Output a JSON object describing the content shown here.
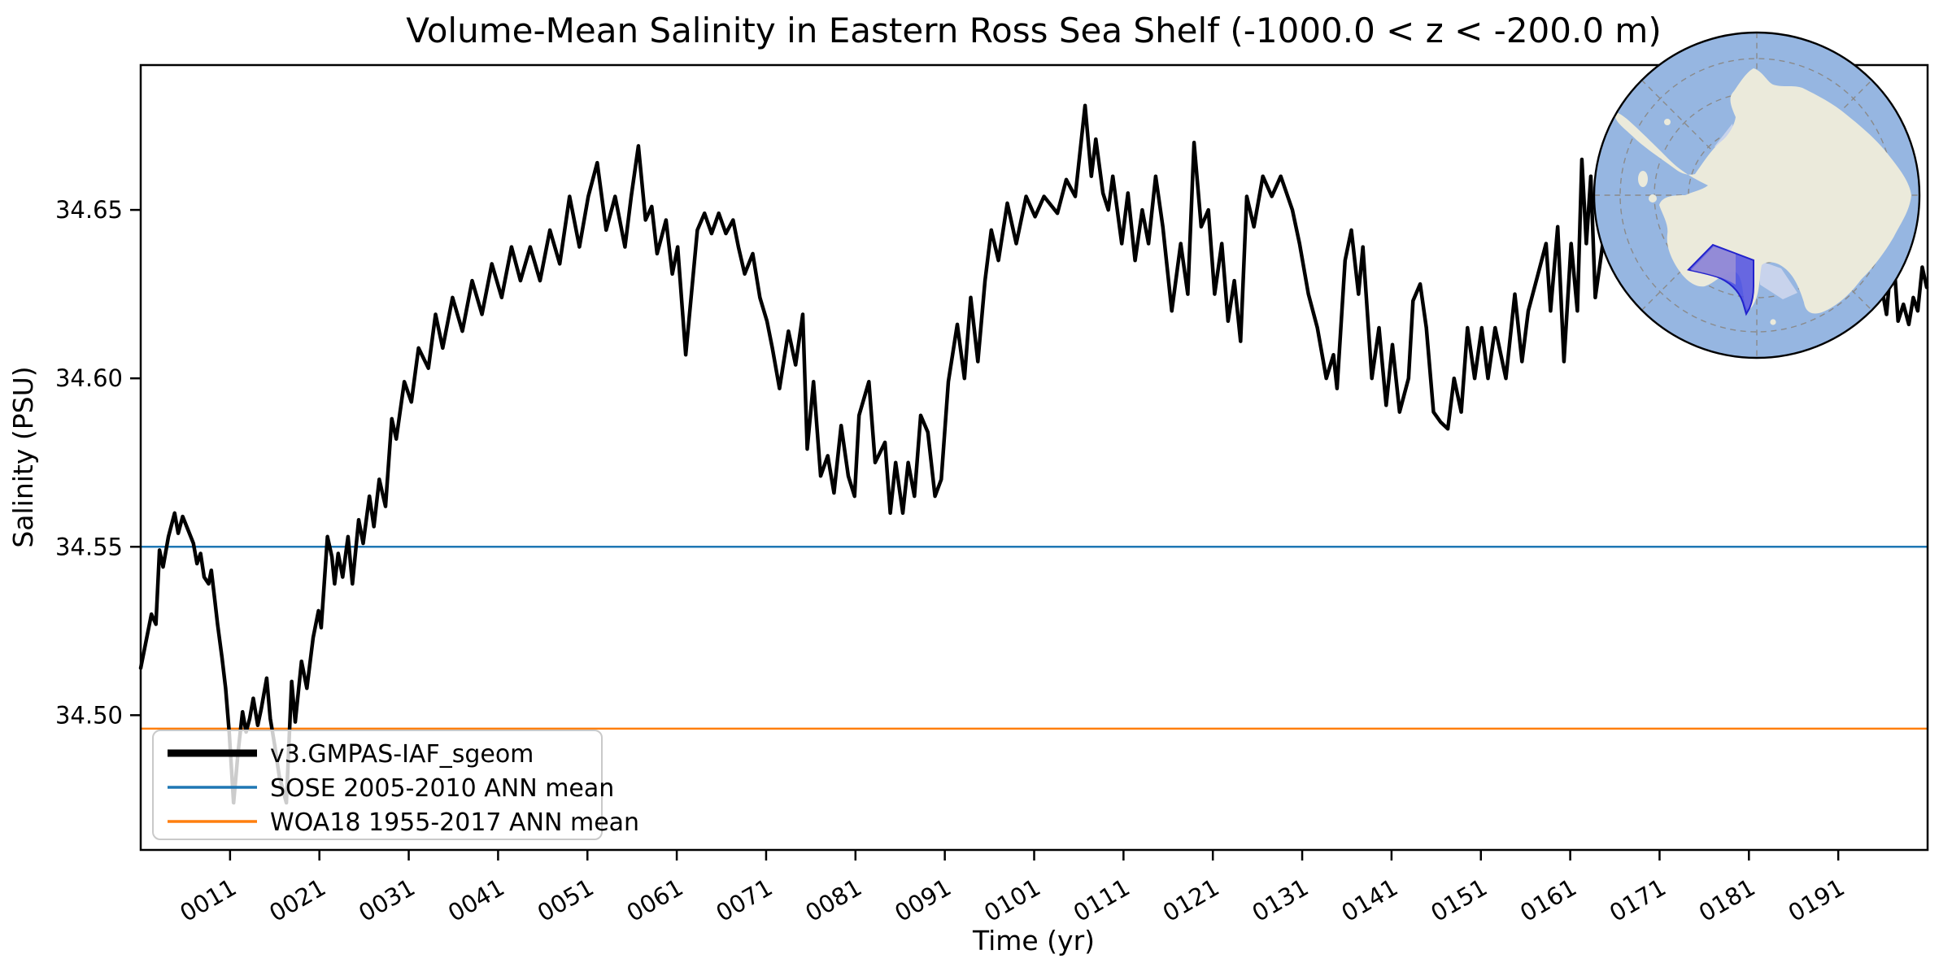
{
  "figure": {
    "title": "Volume-Mean Salinity in Eastern Ross Sea Shelf (-1000.0 < z < -200.0 m)",
    "xlabel": "Time (yr)",
    "ylabel": "Salinity (PSU)"
  },
  "legend": {
    "entries": [
      {
        "label": "v3.GMPAS-IAF_sgeom",
        "color": "#000000"
      },
      {
        "label": "SOSE 2005-2010 ANN mean",
        "color": "#1f77b4"
      },
      {
        "label": "WOA18 1955-2017 ANN mean",
        "color": "#ff7f0e"
      }
    ]
  },
  "inset_map": {
    "description": "south-polar-stereographic-map",
    "colors": {
      "ocean": "#96b6e1",
      "land": "#ebeadb",
      "ice_shelf": "#c8d3ec",
      "region_fill": "#4646e2",
      "region_fill_light": "#988fd6",
      "region_edge": "#2222cc",
      "graticule": "#8a8a8a",
      "border": "#000000"
    }
  },
  "chart_data": {
    "type": "line",
    "title": "Volume-Mean Salinity in Eastern Ross Sea Shelf (-1000.0 < z < -200.0 m)",
    "xlabel": "Time (yr)",
    "ylabel": "Salinity (PSU)",
    "xlim": [
      1,
      201
    ],
    "ylim": [
      34.46,
      34.693
    ],
    "grid": false,
    "legend_position": "lower left",
    "x_ticks": [
      {
        "v": 11,
        "label": "0011"
      },
      {
        "v": 21,
        "label": "0021"
      },
      {
        "v": 31,
        "label": "0031"
      },
      {
        "v": 41,
        "label": "0041"
      },
      {
        "v": 51,
        "label": "0051"
      },
      {
        "v": 61,
        "label": "0061"
      },
      {
        "v": 71,
        "label": "0071"
      },
      {
        "v": 81,
        "label": "0081"
      },
      {
        "v": 91,
        "label": "0091"
      },
      {
        "v": 101,
        "label": "0101"
      },
      {
        "v": 111,
        "label": "0111"
      },
      {
        "v": 121,
        "label": "0121"
      },
      {
        "v": 131,
        "label": "0131"
      },
      {
        "v": 141,
        "label": "0141"
      },
      {
        "v": 151,
        "label": "0151"
      },
      {
        "v": 161,
        "label": "0161"
      },
      {
        "v": 171,
        "label": "0171"
      },
      {
        "v": 181,
        "label": "0181"
      },
      {
        "v": 191,
        "label": "0191"
      }
    ],
    "y_ticks": [
      {
        "v": 34.65,
        "label": "34.65"
      },
      {
        "v": 34.6,
        "label": "34.60"
      },
      {
        "v": 34.55,
        "label": "34.55"
      },
      {
        "v": 34.5,
        "label": "34.50"
      }
    ],
    "reference_lines": [
      {
        "name": "SOSE 2005-2010 ANN mean",
        "value": 34.55,
        "color": "#1f77b4"
      },
      {
        "name": "WOA18 1955-2017 ANN mean",
        "value": 34.496,
        "color": "#ff7f0e"
      }
    ],
    "series": [
      {
        "name": "v3.GMPAS-IAF_sgeom",
        "color": "#000000",
        "linewidth": 4.5,
        "points": [
          [
            1,
            34.514
          ],
          [
            1.6,
            34.522
          ],
          [
            2.2,
            34.53
          ],
          [
            2.7,
            34.527
          ],
          [
            3.1,
            34.549
          ],
          [
            3.5,
            34.544
          ],
          [
            4.1,
            34.553
          ],
          [
            4.8,
            34.56
          ],
          [
            5.2,
            34.554
          ],
          [
            5.7,
            34.559
          ],
          [
            6.3,
            34.555
          ],
          [
            6.9,
            34.551
          ],
          [
            7.3,
            34.545
          ],
          [
            7.7,
            34.548
          ],
          [
            8.1,
            34.541
          ],
          [
            8.6,
            34.539
          ],
          [
            8.9,
            34.543
          ],
          [
            9.3,
            34.534
          ],
          [
            9.6,
            34.527
          ],
          [
            10.1,
            34.517
          ],
          [
            10.5,
            34.508
          ],
          [
            10.9,
            34.495
          ],
          [
            11.4,
            34.474
          ],
          [
            11.9,
            34.489
          ],
          [
            12.4,
            34.501
          ],
          [
            12.8,
            34.495
          ],
          [
            13.2,
            34.499
          ],
          [
            13.6,
            34.505
          ],
          [
            14.1,
            34.497
          ],
          [
            14.5,
            34.502
          ],
          [
            15.1,
            34.511
          ],
          [
            15.5,
            34.499
          ],
          [
            16,
            34.491
          ],
          [
            16.5,
            34.482
          ],
          [
            17.3,
            34.474
          ],
          [
            17.9,
            34.51
          ],
          [
            18.3,
            34.498
          ],
          [
            19,
            34.516
          ],
          [
            19.6,
            34.508
          ],
          [
            20.3,
            34.523
          ],
          [
            20.9,
            34.531
          ],
          [
            21.2,
            34.526
          ],
          [
            21.9,
            34.553
          ],
          [
            22.4,
            34.547
          ],
          [
            22.7,
            34.539
          ],
          [
            23.1,
            34.548
          ],
          [
            23.6,
            34.541
          ],
          [
            24.2,
            34.553
          ],
          [
            24.7,
            34.539
          ],
          [
            25.4,
            34.558
          ],
          [
            25.9,
            34.551
          ],
          [
            26.6,
            34.565
          ],
          [
            27.1,
            34.556
          ],
          [
            27.7,
            34.57
          ],
          [
            28.4,
            34.562
          ],
          [
            29.1,
            34.588
          ],
          [
            29.6,
            34.582
          ],
          [
            30.5,
            34.599
          ],
          [
            31.3,
            34.593
          ],
          [
            32.1,
            34.609
          ],
          [
            33.2,
            34.603
          ],
          [
            34,
            34.619
          ],
          [
            34.8,
            34.609
          ],
          [
            35.9,
            34.624
          ],
          [
            37,
            34.614
          ],
          [
            38.1,
            34.629
          ],
          [
            39.2,
            34.619
          ],
          [
            40.3,
            34.634
          ],
          [
            41.4,
            34.624
          ],
          [
            42.5,
            34.639
          ],
          [
            43.5,
            34.629
          ],
          [
            44.6,
            34.639
          ],
          [
            45.7,
            34.629
          ],
          [
            46.8,
            34.644
          ],
          [
            47.9,
            34.634
          ],
          [
            49,
            34.654
          ],
          [
            50.1,
            34.639
          ],
          [
            51.1,
            34.654
          ],
          [
            52.1,
            34.664
          ],
          [
            53.1,
            34.644
          ],
          [
            54.1,
            34.654
          ],
          [
            55.2,
            34.639
          ],
          [
            55.9,
            34.654
          ],
          [
            56.7,
            34.669
          ],
          [
            57.5,
            34.647
          ],
          [
            58.2,
            34.651
          ],
          [
            58.8,
            34.637
          ],
          [
            59.8,
            34.647
          ],
          [
            60.5,
            34.631
          ],
          [
            61.1,
            34.639
          ],
          [
            62,
            34.607
          ],
          [
            62.6,
            34.624
          ],
          [
            63.3,
            34.644
          ],
          [
            64.1,
            34.649
          ],
          [
            64.9,
            34.643
          ],
          [
            65.7,
            34.649
          ],
          [
            66.5,
            34.643
          ],
          [
            67.3,
            34.647
          ],
          [
            67.9,
            34.639
          ],
          [
            68.6,
            34.631
          ],
          [
            69.5,
            34.637
          ],
          [
            70.3,
            34.624
          ],
          [
            71.1,
            34.617
          ],
          [
            71.7,
            34.609
          ],
          [
            72.5,
            34.597
          ],
          [
            73.5,
            34.614
          ],
          [
            74.3,
            34.604
          ],
          [
            75.1,
            34.619
          ],
          [
            75.6,
            34.579
          ],
          [
            76.3,
            34.599
          ],
          [
            77.1,
            34.571
          ],
          [
            77.9,
            34.577
          ],
          [
            78.6,
            34.566
          ],
          [
            79.4,
            34.586
          ],
          [
            80.2,
            34.571
          ],
          [
            80.9,
            34.565
          ],
          [
            81.4,
            34.589
          ],
          [
            82.5,
            34.599
          ],
          [
            83.2,
            34.575
          ],
          [
            84.3,
            34.581
          ],
          [
            84.9,
            34.56
          ],
          [
            85.5,
            34.575
          ],
          [
            86.3,
            34.56
          ],
          [
            86.9,
            34.575
          ],
          [
            87.6,
            34.565
          ],
          [
            88.3,
            34.589
          ],
          [
            89.1,
            34.584
          ],
          [
            89.9,
            34.565
          ],
          [
            90.6,
            34.57
          ],
          [
            91.4,
            34.599
          ],
          [
            92.4,
            34.616
          ],
          [
            93.2,
            34.6
          ],
          [
            93.9,
            34.624
          ],
          [
            94.7,
            34.605
          ],
          [
            95.5,
            34.629
          ],
          [
            96.2,
            34.644
          ],
          [
            97,
            34.635
          ],
          [
            98,
            34.652
          ],
          [
            99,
            34.64
          ],
          [
            100.1,
            34.654
          ],
          [
            101.1,
            34.648
          ],
          [
            102.1,
            34.654
          ],
          [
            103.6,
            34.649
          ],
          [
            104.6,
            34.659
          ],
          [
            105.6,
            34.654
          ],
          [
            106.7,
            34.681
          ],
          [
            107.4,
            34.66
          ],
          [
            107.9,
            34.671
          ],
          [
            108.7,
            34.655
          ],
          [
            109.3,
            34.65
          ],
          [
            109.8,
            34.66
          ],
          [
            110.8,
            34.64
          ],
          [
            111.5,
            34.655
          ],
          [
            112.3,
            34.635
          ],
          [
            113.1,
            34.65
          ],
          [
            113.8,
            34.64
          ],
          [
            114.6,
            34.66
          ],
          [
            115.4,
            34.645
          ],
          [
            116.4,
            34.62
          ],
          [
            117.4,
            34.64
          ],
          [
            118.2,
            34.625
          ],
          [
            118.9,
            34.67
          ],
          [
            119.7,
            34.645
          ],
          [
            120.5,
            34.65
          ],
          [
            121.2,
            34.625
          ],
          [
            122,
            34.64
          ],
          [
            122.7,
            34.617
          ],
          [
            123.4,
            34.629
          ],
          [
            124.1,
            34.611
          ],
          [
            124.8,
            34.654
          ],
          [
            125.6,
            34.645
          ],
          [
            126.6,
            34.66
          ],
          [
            127.6,
            34.654
          ],
          [
            128.6,
            34.66
          ],
          [
            129.9,
            34.65
          ],
          [
            130.7,
            34.64
          ],
          [
            131.7,
            34.625
          ],
          [
            132.7,
            34.615
          ],
          [
            133.7,
            34.6
          ],
          [
            134.5,
            34.607
          ],
          [
            134.9,
            34.597
          ],
          [
            135.8,
            34.635
          ],
          [
            136.5,
            34.644
          ],
          [
            137.3,
            34.625
          ],
          [
            137.8,
            34.639
          ],
          [
            138.8,
            34.6
          ],
          [
            139.6,
            34.615
          ],
          [
            140.4,
            34.592
          ],
          [
            141.1,
            34.61
          ],
          [
            141.9,
            34.59
          ],
          [
            142.9,
            34.6
          ],
          [
            143.4,
            34.623
          ],
          [
            144.2,
            34.628
          ],
          [
            144.9,
            34.615
          ],
          [
            145.7,
            34.59
          ],
          [
            146.5,
            34.587
          ],
          [
            147.3,
            34.585
          ],
          [
            148,
            34.6
          ],
          [
            148.8,
            34.59
          ],
          [
            149.5,
            34.615
          ],
          [
            150.3,
            34.6
          ],
          [
            151.1,
            34.615
          ],
          [
            151.8,
            34.6
          ],
          [
            152.6,
            34.615
          ],
          [
            153.8,
            34.6
          ],
          [
            154.8,
            34.625
          ],
          [
            155.6,
            34.605
          ],
          [
            156.3,
            34.62
          ],
          [
            157.3,
            34.63
          ],
          [
            158.3,
            34.64
          ],
          [
            158.8,
            34.62
          ],
          [
            159.6,
            34.645
          ],
          [
            160.3,
            34.605
          ],
          [
            161.1,
            34.64
          ],
          [
            161.8,
            34.62
          ],
          [
            162.3,
            34.665
          ],
          [
            162.8,
            34.64
          ],
          [
            163.3,
            34.66
          ],
          [
            163.8,
            34.624
          ],
          [
            164.6,
            34.639
          ],
          [
            165.6,
            34.654
          ],
          [
            166.6,
            34.644
          ],
          [
            167.6,
            34.659
          ],
          [
            168.6,
            34.647
          ],
          [
            169.6,
            34.661
          ],
          [
            170.6,
            34.651
          ],
          [
            171.6,
            34.662
          ],
          [
            172.6,
            34.649
          ],
          [
            173.6,
            34.659
          ],
          [
            174.6,
            34.644
          ],
          [
            175.6,
            34.657
          ],
          [
            176.6,
            34.639
          ],
          [
            177.6,
            34.651
          ],
          [
            178.6,
            34.637
          ],
          [
            179.6,
            34.649
          ],
          [
            180.6,
            34.635
          ],
          [
            181.6,
            34.647
          ],
          [
            182.6,
            34.634
          ],
          [
            183.6,
            34.644
          ],
          [
            184.6,
            34.631
          ],
          [
            185.6,
            34.641
          ],
          [
            186.6,
            34.629
          ],
          [
            187.6,
            34.639
          ],
          [
            188.6,
            34.627
          ],
          [
            189.6,
            34.637
          ],
          [
            190.6,
            34.624
          ],
          [
            191.6,
            34.635
          ],
          [
            192.6,
            34.623
          ],
          [
            193.6,
            34.633
          ],
          [
            194.6,
            34.621
          ],
          [
            195.6,
            34.631
          ],
          [
            196.4,
            34.619
          ],
          [
            197.1,
            34.64
          ],
          [
            197.7,
            34.617
          ],
          [
            198.3,
            34.622
          ],
          [
            198.9,
            34.616
          ],
          [
            199.4,
            34.624
          ],
          [
            199.9,
            34.62
          ],
          [
            200.4,
            34.633
          ],
          [
            200.9,
            34.627
          ]
        ]
      }
    ]
  }
}
